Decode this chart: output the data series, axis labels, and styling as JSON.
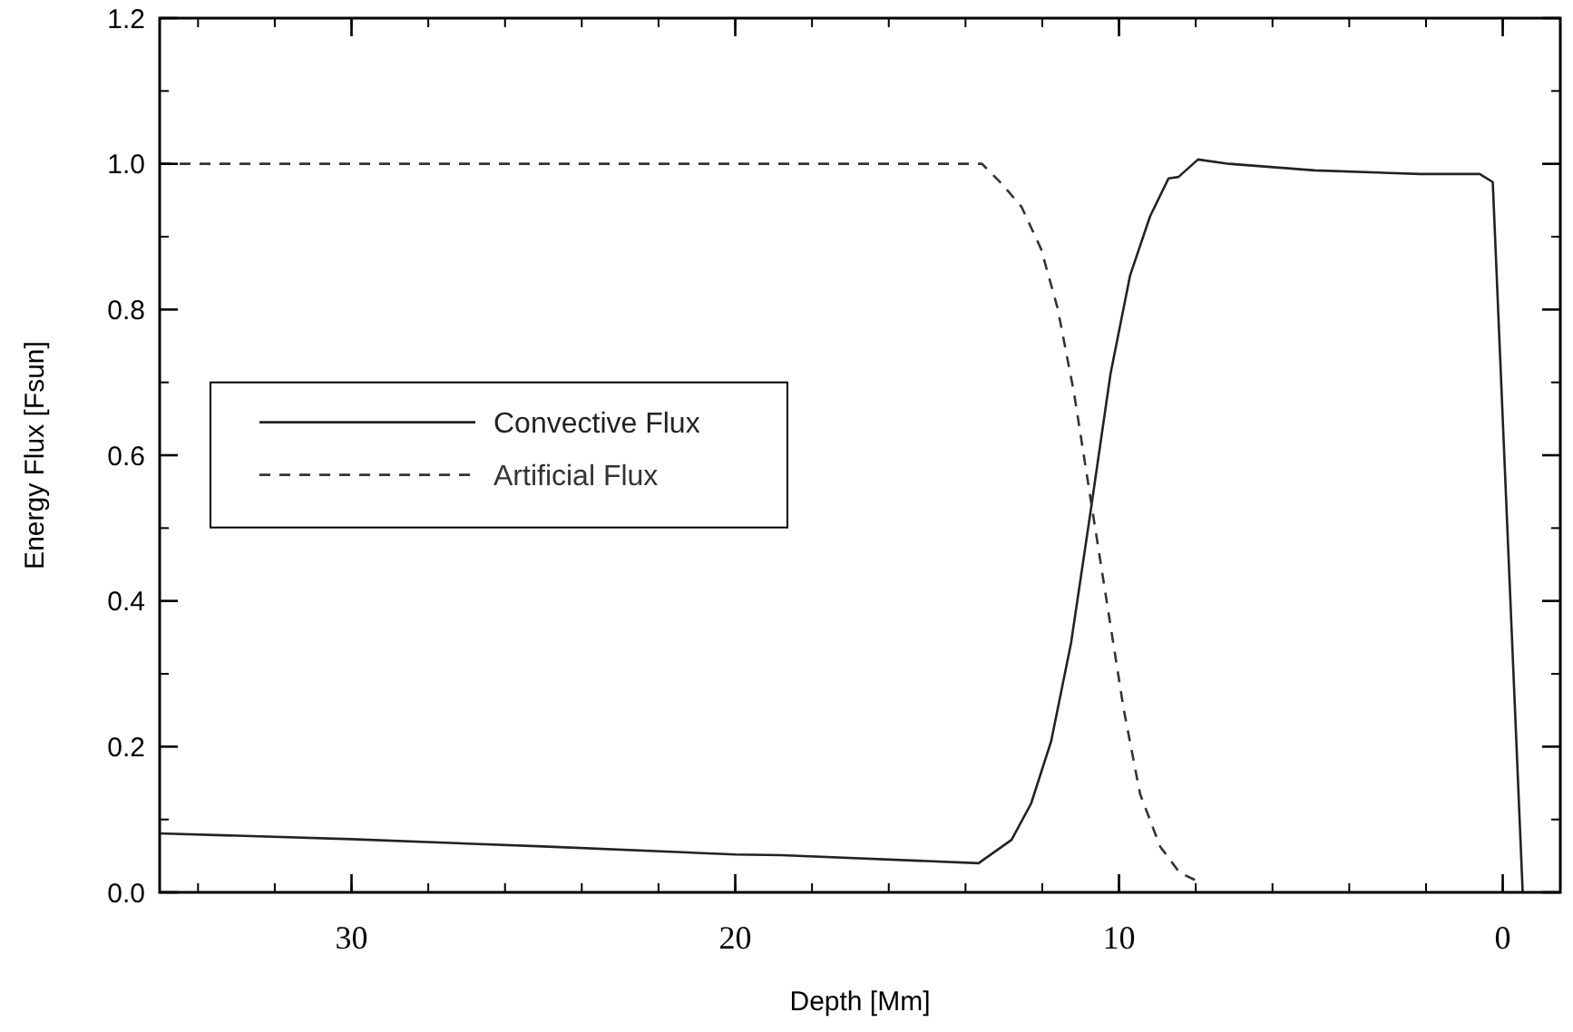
{
  "chart_data": {
    "type": "line",
    "xlabel": "Depth [Mm]",
    "ylabel": "Energy Flux [Fsun]",
    "xlim": [
      35,
      -1.5
    ],
    "xticks": [
      30,
      20,
      10,
      0
    ],
    "ylim": [
      0,
      1.2
    ],
    "yticks": [
      {
        "value": 0,
        "label": "0.0"
      },
      0.2,
      0.4,
      0.6,
      0.8,
      {
        "value": 1,
        "label": "1.0"
      },
      1.2
    ],
    "legend": "left",
    "grid": false,
    "marker": "none",
    "series": [
      {
        "name": "Convective Flux",
        "color": "#222222",
        "line_style": "solid",
        "x": [
          35,
          30,
          25,
          20,
          18.8,
          13.66,
          12.8,
          12.29,
          11.77,
          11.25,
          10.74,
          10.22,
          9.71,
          9.19,
          8.71,
          8.45,
          7.94,
          7.13,
          4.9,
          2.15,
          0.6,
          0.26,
          -0.52
        ],
        "values": [
          0.081,
          0.073,
          0.063,
          0.052,
          0.051,
          0.04,
          0.072,
          0.122,
          0.207,
          0.342,
          0.523,
          0.712,
          0.847,
          0.928,
          0.98,
          0.982,
          1.006,
          1.0,
          0.991,
          0.986,
          0.986,
          0.975,
          0.0
        ]
      },
      {
        "name": "Artificial Flux",
        "color": "#333333",
        "line_style": "dashed",
        "x": [
          35,
          13.57,
          13.06,
          12.54,
          12.03,
          11.6,
          11.17,
          10.74,
          10.31,
          9.88,
          9.45,
          8.93,
          8.42,
          7.9
        ],
        "values": [
          1.0,
          1.0,
          0.973,
          0.941,
          0.883,
          0.802,
          0.685,
          0.54,
          0.396,
          0.252,
          0.135,
          0.063,
          0.027,
          0.014
        ]
      }
    ]
  }
}
